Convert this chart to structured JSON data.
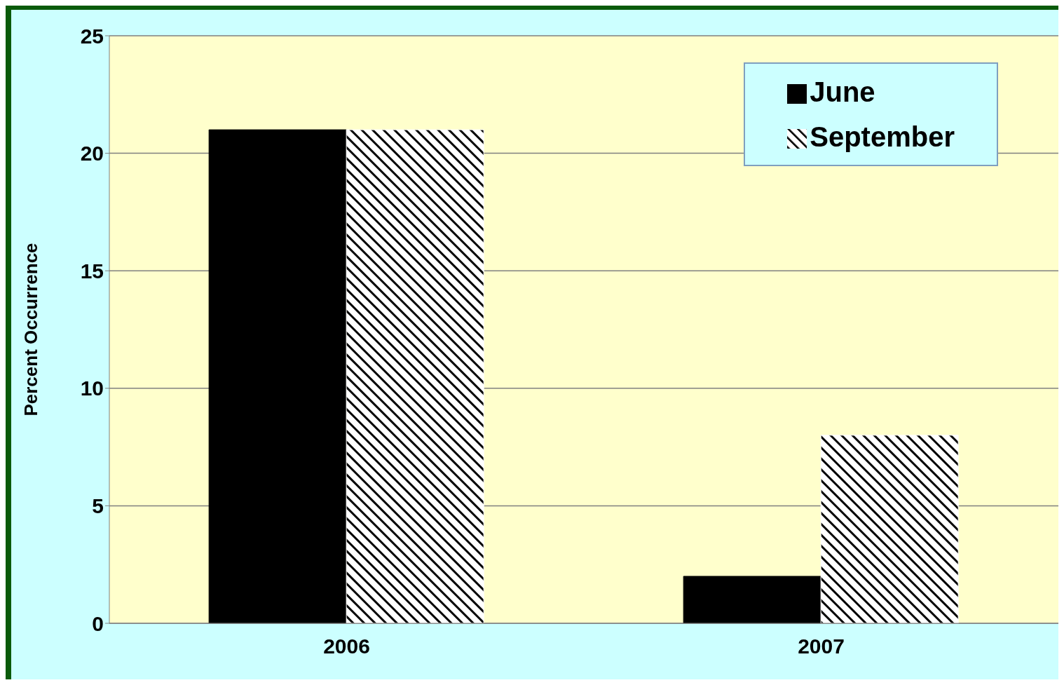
{
  "chart_data": {
    "type": "bar",
    "ylabel": "Percent Occurrence",
    "categories": [
      "2006",
      "2007"
    ],
    "series": [
      {
        "name": "June",
        "color": "#000000",
        "values": [
          21,
          2
        ]
      },
      {
        "name": "September",
        "color": "#ffffff",
        "values": [
          21,
          8
        ]
      }
    ],
    "ylim": [
      0,
      25
    ],
    "yticks": [
      0,
      5,
      10,
      15,
      20,
      25
    ],
    "grid": "y",
    "legend": "top right"
  }
}
